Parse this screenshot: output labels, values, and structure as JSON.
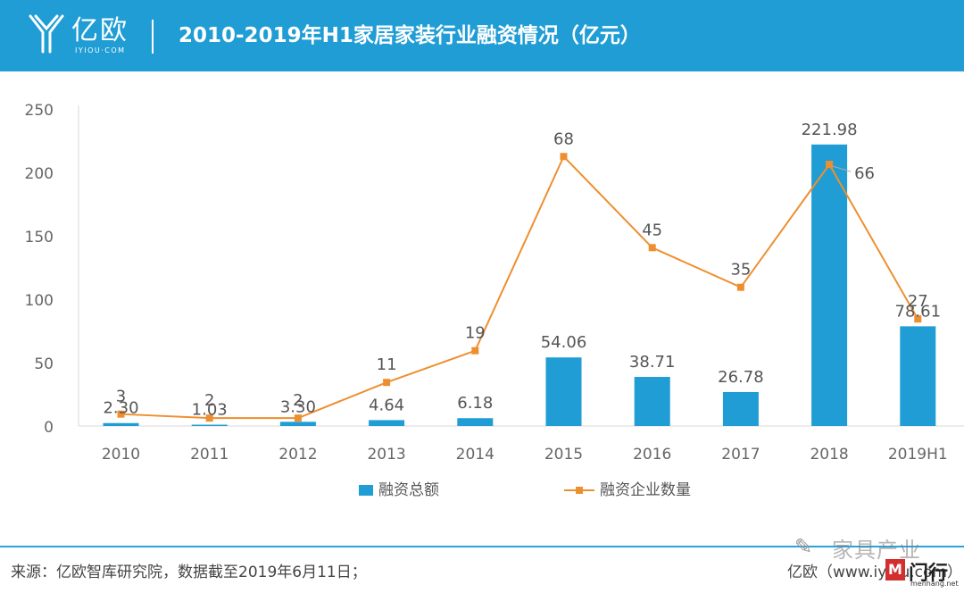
{
  "header": {
    "logo_name": "亿欧",
    "logo_domain": "IYIOU·COM",
    "title": "2010-2019年H1家居家装行业融资情况（亿元）"
  },
  "chart_data": {
    "type": "bar",
    "title": "2010-2019年H1家居家装行业融资情况（亿元）",
    "categories": [
      "2010",
      "2011",
      "2012",
      "2013",
      "2014",
      "2015",
      "2016",
      "2017",
      "2018",
      "2019H1"
    ],
    "ylim": [
      0,
      250
    ],
    "yticks": [
      "0",
      "50",
      "100",
      "150",
      "200",
      "250"
    ],
    "series": [
      {
        "name": "融资总额",
        "type": "bar",
        "values": [
          2.3,
          1.03,
          3.3,
          4.64,
          6.18,
          54.06,
          38.71,
          26.78,
          221.98,
          78.61
        ],
        "labels": [
          "2.30",
          "1.03",
          "3.30",
          "4.64",
          "6.18",
          "54.06",
          "38.71",
          "26.78",
          "221.98",
          "78.61"
        ],
        "color": "#1f9dd4"
      },
      {
        "name": "融资企业数量",
        "type": "line",
        "values": [
          3,
          2,
          2,
          11,
          19,
          68,
          45,
          35,
          66,
          27
        ],
        "labels": [
          "3",
          "2",
          "2",
          "11",
          "19",
          "68",
          "45",
          "35",
          "66",
          "27"
        ],
        "color": "#ee8f2f"
      }
    ],
    "legend_position": "bottom",
    "grid": false
  },
  "footer": {
    "source": "来源：亿欧智库研究院，数据截至2019年6月11日；",
    "brand": "亿欧（www.iyiou.com）"
  },
  "watermark": {
    "text": "家具产业",
    "logo_text": "门行",
    "domain": "menhang.net"
  }
}
